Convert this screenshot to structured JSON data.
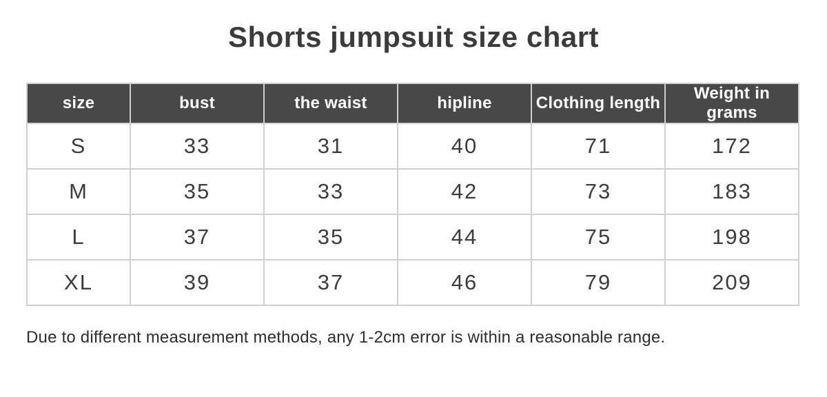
{
  "chart_data": {
    "type": "table",
    "title": "Shorts jumpsuit size chart",
    "columns": [
      "size",
      "bust",
      "the waist",
      "hipline",
      "Clothing length",
      "Weight in grams"
    ],
    "rows": [
      [
        "S",
        "33",
        "31",
        "40",
        "71",
        "172"
      ],
      [
        "M",
        "35",
        "33",
        "42",
        "73",
        "183"
      ],
      [
        "L",
        "37",
        "35",
        "44",
        "75",
        "198"
      ],
      [
        "XL",
        "39",
        "37",
        "46",
        "79",
        "209"
      ]
    ],
    "annotations": [
      "Due to different measurement methods, any 1-2cm error is within a reasonable range."
    ],
    "layout_hints": {
      "header_position": "top",
      "grid": true,
      "first_column_narrow": true
    }
  },
  "colors": {
    "header_bg": "#484848",
    "header_text": "#ffffff",
    "border": "#cfcfcf",
    "body_text": "#3c3c3c",
    "title_text": "#3b3b3b",
    "note_text": "#2d2d2d",
    "page_bg": "#ffffff"
  }
}
